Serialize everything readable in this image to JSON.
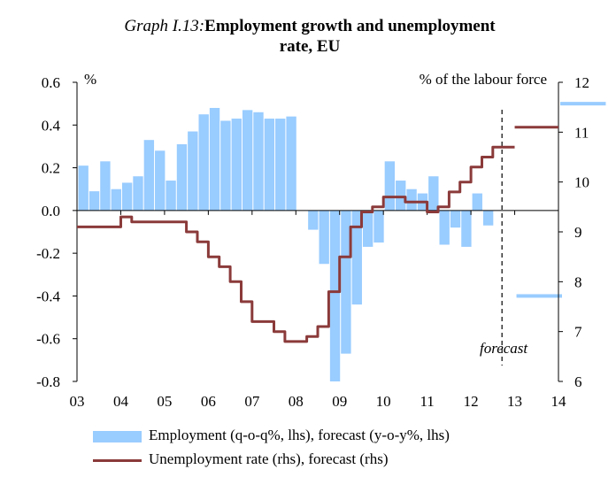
{
  "title": {
    "prefix": "Graph I.13:",
    "main_line1": "Employment growth and unemployment",
    "main_line2": "rate, EU"
  },
  "chart_data": {
    "type": "bar+line",
    "left_axis": {
      "unit_label": "%",
      "range": [
        -0.8,
        0.6
      ],
      "ticks": [
        "0.6",
        "0.4",
        "0.2",
        "0.0",
        "-0.2",
        "-0.4",
        "-0.6",
        "-0.8"
      ]
    },
    "right_axis": {
      "unit_label": "% of the labour force",
      "range": [
        6,
        12
      ],
      "ticks": [
        "12",
        "11",
        "10",
        "9",
        "8",
        "7",
        "6"
      ]
    },
    "x_axis": {
      "range": [
        2003.0,
        2014.0
      ],
      "ticks": [
        "03",
        "04",
        "05",
        "06",
        "07",
        "08",
        "09",
        "10",
        "11",
        "12",
        "13",
        "14"
      ]
    },
    "forecast_start": 2012.75,
    "forecast_label": "forecast",
    "colors": {
      "employment": "#99ccff",
      "unemployment": "#8b3a3a"
    },
    "series": [
      {
        "name": "Employment (q-o-q%, lhs), forecast (y-o-y%, lhs)",
        "axis": "left",
        "style": "bar",
        "x": [
          2003.0,
          2003.25,
          2003.5,
          2003.75,
          2004.0,
          2004.25,
          2004.5,
          2004.75,
          2005.0,
          2005.25,
          2005.5,
          2005.75,
          2006.0,
          2006.25,
          2006.5,
          2006.75,
          2007.0,
          2007.25,
          2007.5,
          2007.75,
          2008.0,
          2008.25,
          2008.5,
          2008.75,
          2009.0,
          2009.25,
          2009.5,
          2009.75,
          2010.0,
          2010.25,
          2010.5,
          2010.75,
          2011.0,
          2011.25,
          2011.5,
          2011.75,
          2012.0,
          2012.25,
          2012.5,
          2012.75
        ],
        "values": [
          0.21,
          0.09,
          0.23,
          0.1,
          0.13,
          0.16,
          0.33,
          0.28,
          0.14,
          0.31,
          0.37,
          0.45,
          0.48,
          0.42,
          0.43,
          0.47,
          0.46,
          0.43,
          0.43,
          0.44,
          0.0,
          -0.09,
          -0.25,
          -0.8,
          -0.67,
          -0.44,
          -0.17,
          -0.15,
          0.23,
          0.14,
          0.1,
          0.08,
          0.16,
          -0.16,
          -0.08,
          -0.17,
          0.08,
          -0.07,
          0.0,
          0.0
        ],
        "forecast": [
          {
            "year": 2013,
            "value": -0.4
          },
          {
            "year": 2014,
            "value": 0.5
          }
        ]
      },
      {
        "name": "Unemployment rate (rhs), forecast (rhs)",
        "axis": "right",
        "style": "line",
        "x": [
          2003.0,
          2003.25,
          2003.5,
          2003.75,
          2004.0,
          2004.25,
          2004.5,
          2004.75,
          2005.0,
          2005.25,
          2005.5,
          2005.75,
          2006.0,
          2006.25,
          2006.5,
          2006.75,
          2007.0,
          2007.25,
          2007.5,
          2007.75,
          2008.0,
          2008.25,
          2008.5,
          2008.75,
          2009.0,
          2009.25,
          2009.5,
          2009.75,
          2010.0,
          2010.25,
          2010.5,
          2010.75,
          2011.0,
          2011.25,
          2011.5,
          2011.75,
          2012.0,
          2012.25,
          2012.5,
          2012.75
        ],
        "values": [
          9.1,
          9.1,
          9.1,
          9.1,
          9.3,
          9.2,
          9.2,
          9.2,
          9.2,
          9.2,
          9.0,
          8.8,
          8.5,
          8.3,
          8.0,
          7.6,
          7.2,
          7.2,
          7.0,
          6.8,
          6.8,
          6.9,
          7.1,
          7.8,
          8.5,
          9.1,
          9.4,
          9.5,
          9.7,
          9.7,
          9.6,
          9.6,
          9.4,
          9.5,
          9.8,
          10.0,
          10.3,
          10.5,
          10.7,
          10.7
        ],
        "forecast": [
          {
            "year": 2013,
            "value": 11.1
          },
          {
            "year": 2014,
            "value": 11.0
          }
        ]
      }
    ]
  },
  "legend": {
    "employment": "Employment (q-o-q%, lhs), forecast (y-o-y%, lhs)",
    "unemployment": "Unemployment rate (rhs), forecast (rhs)"
  }
}
